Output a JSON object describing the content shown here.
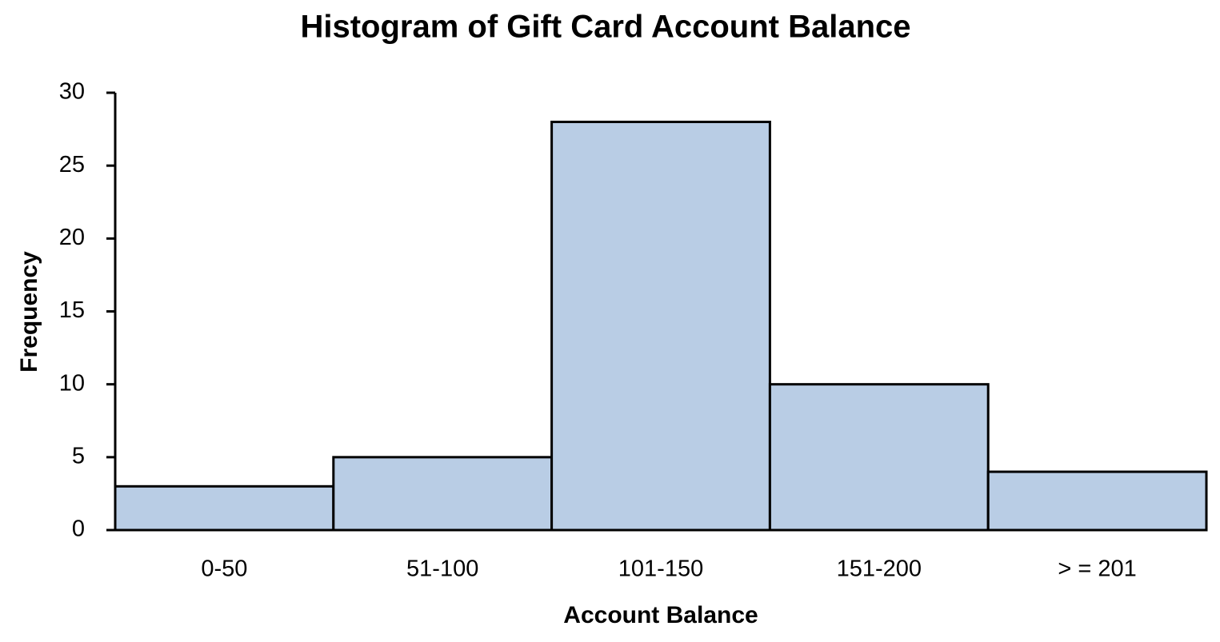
{
  "chart_data": {
    "type": "bar",
    "title": "Histogram of Gift Card Account Balance",
    "xlabel": "Account Balance",
    "ylabel": "Frequency",
    "categories": [
      "0-50",
      "51-100",
      "101-150",
      "151-200",
      "> = 201"
    ],
    "values": [
      3,
      5,
      28,
      10,
      4
    ],
    "color": "#b9cde5",
    "edgecolor": "#000000",
    "ylim": [
      0,
      30
    ],
    "yticks": [
      0,
      5,
      10,
      15,
      20,
      25,
      30
    ],
    "grid": false
  }
}
